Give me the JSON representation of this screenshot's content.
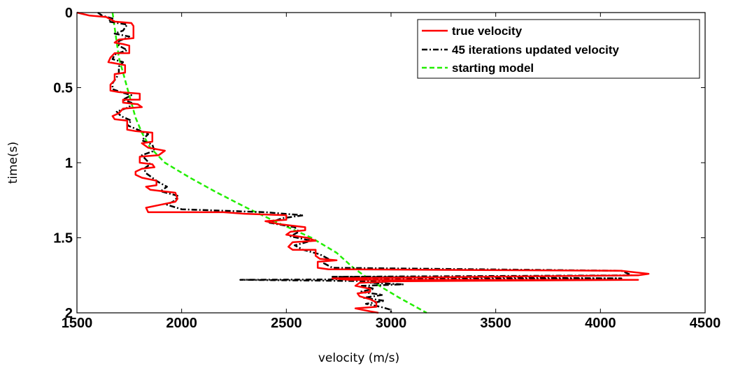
{
  "chart_data": {
    "type": "line",
    "title": "",
    "xlabel": "velocity (m/s)",
    "ylabel": "time(s)",
    "xlim": [
      1500,
      4500
    ],
    "ylim": [
      0,
      2
    ],
    "y_axis_reversed": true,
    "x_ticks": [
      1500,
      2000,
      2500,
      3000,
      3500,
      4000,
      4500
    ],
    "x_tick_labels": [
      "1500",
      "2000",
      "2500",
      "3000",
      "3500",
      "4000",
      "4500"
    ],
    "y_ticks": [
      0,
      0.5,
      1,
      1.5,
      2
    ],
    "y_tick_labels": [
      "0",
      "0.5",
      "1",
      "1.5",
      "2"
    ],
    "grid": false,
    "legend_position": "top-right",
    "series": [
      {
        "name": "true velocity",
        "color": "#ff0000",
        "style": "solid",
        "points": [
          [
            1500,
            0.0
          ],
          [
            1560,
            0.02
          ],
          [
            1640,
            0.03
          ],
          [
            1680,
            0.06
          ],
          [
            1760,
            0.07
          ],
          [
            1770,
            0.09
          ],
          [
            1770,
            0.17
          ],
          [
            1700,
            0.18
          ],
          [
            1680,
            0.2
          ],
          [
            1720,
            0.21
          ],
          [
            1750,
            0.22
          ],
          [
            1750,
            0.27
          ],
          [
            1680,
            0.27
          ],
          [
            1660,
            0.3
          ],
          [
            1650,
            0.33
          ],
          [
            1690,
            0.34
          ],
          [
            1730,
            0.35
          ],
          [
            1730,
            0.4
          ],
          [
            1680,
            0.41
          ],
          [
            1680,
            0.45
          ],
          [
            1660,
            0.48
          ],
          [
            1660,
            0.52
          ],
          [
            1700,
            0.53
          ],
          [
            1800,
            0.54
          ],
          [
            1800,
            0.58
          ],
          [
            1720,
            0.58
          ],
          [
            1720,
            0.6
          ],
          [
            1790,
            0.61
          ],
          [
            1810,
            0.63
          ],
          [
            1720,
            0.64
          ],
          [
            1700,
            0.67
          ],
          [
            1670,
            0.69
          ],
          [
            1680,
            0.71
          ],
          [
            1740,
            0.72
          ],
          [
            1740,
            0.78
          ],
          [
            1780,
            0.79
          ],
          [
            1860,
            0.8
          ],
          [
            1860,
            0.86
          ],
          [
            1810,
            0.87
          ],
          [
            1840,
            0.9
          ],
          [
            1920,
            0.92
          ],
          [
            1890,
            0.95
          ],
          [
            1800,
            0.96
          ],
          [
            1800,
            1.0
          ],
          [
            1860,
            1.01
          ],
          [
            1870,
            1.03
          ],
          [
            1810,
            1.04
          ],
          [
            1780,
            1.06
          ],
          [
            1780,
            1.08
          ],
          [
            1810,
            1.1
          ],
          [
            1880,
            1.12
          ],
          [
            1880,
            1.15
          ],
          [
            1830,
            1.16
          ],
          [
            1850,
            1.18
          ],
          [
            1970,
            1.2
          ],
          [
            1980,
            1.24
          ],
          [
            1970,
            1.26
          ],
          [
            1900,
            1.28
          ],
          [
            1830,
            1.3
          ],
          [
            1840,
            1.33
          ],
          [
            2200,
            1.33
          ],
          [
            2300,
            1.34
          ],
          [
            2500,
            1.35
          ],
          [
            2500,
            1.38
          ],
          [
            2400,
            1.39
          ],
          [
            2470,
            1.41
          ],
          [
            2590,
            1.43
          ],
          [
            2590,
            1.45
          ],
          [
            2520,
            1.46
          ],
          [
            2500,
            1.48
          ],
          [
            2600,
            1.5
          ],
          [
            2640,
            1.52
          ],
          [
            2530,
            1.53
          ],
          [
            2510,
            1.56
          ],
          [
            2530,
            1.58
          ],
          [
            2640,
            1.58
          ],
          [
            2640,
            1.62
          ],
          [
            2660,
            1.64
          ],
          [
            2740,
            1.65
          ],
          [
            2650,
            1.66
          ],
          [
            2650,
            1.7
          ],
          [
            2700,
            1.71
          ],
          [
            4100,
            1.72
          ],
          [
            4230,
            1.74
          ],
          [
            4180,
            1.75
          ],
          [
            2720,
            1.77
          ],
          [
            2800,
            1.78
          ],
          [
            4180,
            1.78
          ],
          [
            3000,
            1.79
          ],
          [
            2850,
            1.8
          ],
          [
            2830,
            1.82
          ],
          [
            2900,
            1.84
          ],
          [
            2900,
            1.86
          ],
          [
            2840,
            1.87
          ],
          [
            2850,
            1.89
          ],
          [
            2900,
            1.91
          ],
          [
            2930,
            1.93
          ],
          [
            2930,
            1.96
          ],
          [
            2830,
            1.97
          ],
          [
            2900,
            1.99
          ],
          [
            2940,
            2.0
          ]
        ]
      },
      {
        "name": "45 iterations updated velocity",
        "color": "#000000",
        "style": "dash-dot",
        "points": [
          [
            1600,
            0.0
          ],
          [
            1620,
            0.02
          ],
          [
            1670,
            0.04
          ],
          [
            1650,
            0.06
          ],
          [
            1740,
            0.08
          ],
          [
            1720,
            0.12
          ],
          [
            1680,
            0.14
          ],
          [
            1750,
            0.16
          ],
          [
            1700,
            0.19
          ],
          [
            1700,
            0.22
          ],
          [
            1740,
            0.25
          ],
          [
            1680,
            0.28
          ],
          [
            1670,
            0.31
          ],
          [
            1720,
            0.33
          ],
          [
            1700,
            0.36
          ],
          [
            1700,
            0.4
          ],
          [
            1690,
            0.43
          ],
          [
            1670,
            0.47
          ],
          [
            1670,
            0.51
          ],
          [
            1710,
            0.53
          ],
          [
            1760,
            0.55
          ],
          [
            1720,
            0.58
          ],
          [
            1760,
            0.6
          ],
          [
            1750,
            0.63
          ],
          [
            1690,
            0.66
          ],
          [
            1710,
            0.69
          ],
          [
            1760,
            0.72
          ],
          [
            1740,
            0.75
          ],
          [
            1790,
            0.78
          ],
          [
            1840,
            0.81
          ],
          [
            1810,
            0.85
          ],
          [
            1860,
            0.88
          ],
          [
            1870,
            0.92
          ],
          [
            1810,
            0.95
          ],
          [
            1830,
            0.98
          ],
          [
            1850,
            1.01
          ],
          [
            1820,
            1.04
          ],
          [
            1830,
            1.07
          ],
          [
            1860,
            1.1
          ],
          [
            1890,
            1.13
          ],
          [
            1930,
            1.16
          ],
          [
            1900,
            1.19
          ],
          [
            1980,
            1.22
          ],
          [
            1970,
            1.25
          ],
          [
            1930,
            1.28
          ],
          [
            2000,
            1.31
          ],
          [
            2400,
            1.33
          ],
          [
            2580,
            1.35
          ],
          [
            2480,
            1.37
          ],
          [
            2420,
            1.4
          ],
          [
            2540,
            1.43
          ],
          [
            2560,
            1.46
          ],
          [
            2520,
            1.49
          ],
          [
            2620,
            1.52
          ],
          [
            2540,
            1.55
          ],
          [
            2580,
            1.58
          ],
          [
            2660,
            1.61
          ],
          [
            2700,
            1.64
          ],
          [
            2680,
            1.67
          ],
          [
            2720,
            1.7
          ],
          [
            4100,
            1.72
          ],
          [
            4150,
            1.75
          ],
          [
            2720,
            1.76
          ],
          [
            4100,
            1.77
          ],
          [
            2280,
            1.78
          ],
          [
            3000,
            1.79
          ],
          [
            2900,
            1.8
          ],
          [
            3060,
            1.81
          ],
          [
            2860,
            1.82
          ],
          [
            2920,
            1.84
          ],
          [
            2850,
            1.86
          ],
          [
            2960,
            1.88
          ],
          [
            2870,
            1.9
          ],
          [
            2970,
            1.92
          ],
          [
            2880,
            1.94
          ],
          [
            2950,
            1.96
          ],
          [
            3000,
            1.98
          ],
          [
            3000,
            2.0
          ]
        ]
      },
      {
        "name": "starting model",
        "color": "#22ee00",
        "style": "dashed",
        "points": [
          [
            1670,
            0.0
          ],
          [
            1680,
            0.1
          ],
          [
            1690,
            0.2
          ],
          [
            1700,
            0.3
          ],
          [
            1720,
            0.4
          ],
          [
            1740,
            0.5
          ],
          [
            1760,
            0.6
          ],
          [
            1780,
            0.7
          ],
          [
            1810,
            0.8
          ],
          [
            1850,
            0.9
          ],
          [
            1920,
            1.0
          ],
          [
            2040,
            1.1
          ],
          [
            2170,
            1.2
          ],
          [
            2310,
            1.3
          ],
          [
            2460,
            1.4
          ],
          [
            2620,
            1.5
          ],
          [
            2740,
            1.6
          ],
          [
            2820,
            1.7
          ],
          [
            2920,
            1.8
          ],
          [
            3040,
            1.9
          ],
          [
            3170,
            2.0
          ]
        ]
      }
    ]
  }
}
